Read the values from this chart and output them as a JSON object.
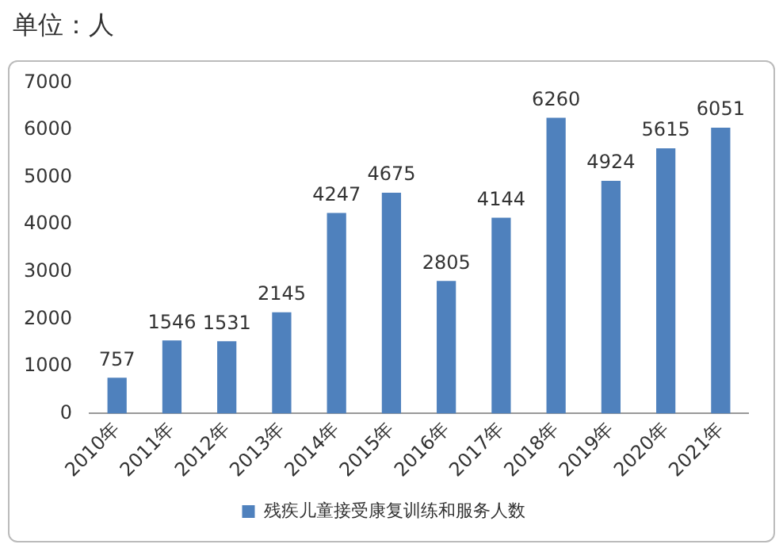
{
  "chart_data": {
    "type": "bar",
    "ylabel": "单位：人",
    "categories": [
      "2010年",
      "2011年",
      "2012年",
      "2013年",
      "2014年",
      "2015年",
      "2016年",
      "2017年",
      "2018年",
      "2019年",
      "2020年",
      "2021年"
    ],
    "series": [
      {
        "name": "残疾儿童接受康复训练和服务人数",
        "color": "#4f81bd",
        "values": [
          757,
          1546,
          1531,
          2145,
          4247,
          4675,
          2805,
          4144,
          6260,
          4924,
          5615,
          6051
        ]
      }
    ],
    "ylim": [
      0,
      7000
    ],
    "yticks": [
      0,
      1000,
      2000,
      3000,
      4000,
      5000,
      6000,
      7000
    ],
    "grid": false,
    "legend": "bottom",
    "data_labels": true
  }
}
